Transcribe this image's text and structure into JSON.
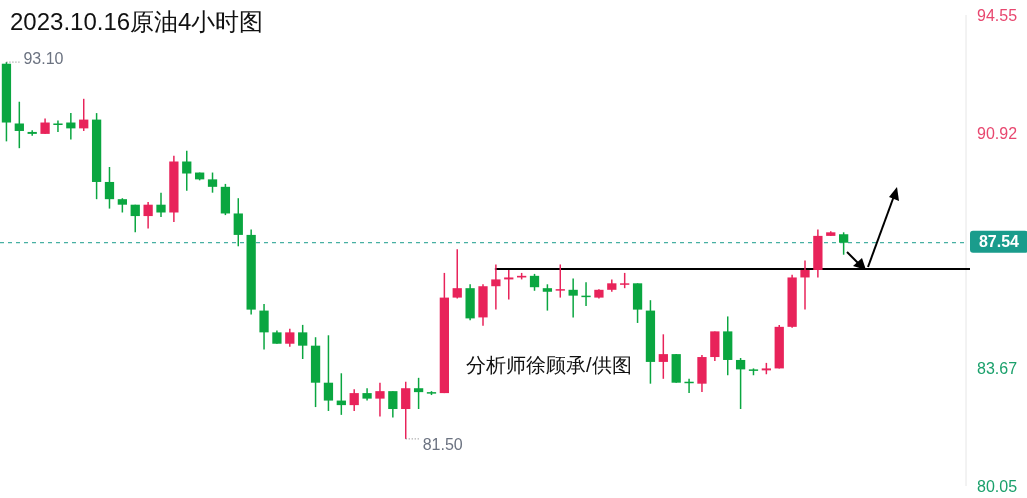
{
  "chart_data": {
    "type": "candlestick",
    "title": "2023.10.16原油4小时图",
    "categories": [
      null,
      null,
      null,
      null,
      null,
      null,
      null,
      null,
      null,
      null,
      null,
      null,
      null,
      null,
      null,
      null,
      null,
      null,
      null,
      null,
      null,
      null,
      null,
      null,
      null,
      null,
      null,
      null,
      null,
      null,
      null,
      null,
      null,
      null,
      null,
      null,
      null,
      null,
      null,
      null,
      null,
      null,
      null,
      null,
      null,
      null,
      null,
      null,
      null,
      null,
      null,
      null,
      null,
      null,
      null,
      null,
      null,
      null,
      null,
      null,
      null,
      null,
      null,
      null,
      null,
      null,
      null,
      null,
      null,
      null,
      null,
      null,
      null,
      null,
      null
    ],
    "ohlc": [
      [
        93.05,
        93.1,
        90.66,
        91.24
      ],
      [
        91.21,
        91.88,
        90.45,
        90.98
      ],
      [
        90.95,
        91.0,
        90.83,
        90.89
      ],
      [
        90.89,
        91.36,
        90.89,
        91.24
      ],
      [
        91.21,
        91.3,
        90.95,
        91.18
      ],
      [
        91.24,
        91.53,
        90.72,
        91.06
      ],
      [
        91.06,
        91.97,
        90.98,
        91.33
      ],
      [
        91.33,
        91.53,
        88.88,
        89.41
      ],
      [
        89.41,
        89.87,
        88.59,
        88.88
      ],
      [
        88.88,
        88.91,
        88.47,
        88.71
      ],
      [
        88.71,
        88.71,
        87.86,
        88.36
      ],
      [
        88.36,
        88.79,
        87.98,
        88.71
      ],
      [
        88.71,
        89.08,
        88.33,
        88.47
      ],
      [
        88.47,
        90.22,
        88.18,
        90.04
      ],
      [
        90.04,
        90.37,
        89.14,
        89.67
      ],
      [
        89.7,
        89.7,
        89.46,
        89.49
      ],
      [
        89.49,
        89.7,
        89.08,
        89.26
      ],
      [
        89.26,
        89.35,
        88.39,
        88.44
      ],
      [
        88.44,
        88.91,
        87.43,
        87.78
      ],
      [
        87.78,
        87.95,
        85.33,
        85.48
      ],
      [
        85.45,
        85.65,
        84.25,
        84.78
      ],
      [
        84.78,
        84.84,
        84.43,
        84.43
      ],
      [
        84.43,
        84.89,
        84.34,
        84.78
      ],
      [
        84.78,
        85.01,
        83.96,
        84.37
      ],
      [
        84.37,
        84.63,
        82.48,
        83.23
      ],
      [
        83.23,
        84.69,
        82.36,
        82.68
      ],
      [
        82.68,
        83.52,
        82.24,
        82.54
      ],
      [
        82.54,
        83.03,
        82.36,
        82.91
      ],
      [
        82.91,
        83.06,
        82.68,
        82.74
      ],
      [
        82.74,
        83.23,
        82.19,
        82.97
      ],
      [
        82.97,
        82.97,
        82.16,
        82.42
      ],
      [
        82.42,
        83.26,
        81.5,
        83.06
      ],
      [
        83.06,
        83.38,
        82.42,
        82.94
      ],
      [
        82.94,
        82.97,
        82.85,
        82.91
      ],
      [
        82.91,
        86.61,
        82.91,
        85.85
      ],
      [
        85.85,
        87.34,
        85.82,
        86.14
      ],
      [
        86.14,
        86.26,
        85.15,
        85.21
      ],
      [
        85.24,
        86.26,
        84.98,
        86.2
      ],
      [
        86.2,
        86.87,
        85.48,
        86.41
      ],
      [
        86.41,
        86.7,
        85.79,
        86.47
      ],
      [
        86.47,
        86.61,
        86.41,
        86.52
      ],
      [
        86.52,
        86.58,
        86.06,
        86.17
      ],
      [
        86.14,
        86.26,
        85.45,
        86.03
      ],
      [
        86.09,
        86.87,
        85.85,
        86.11
      ],
      [
        86.09,
        86.44,
        85.24,
        85.91
      ],
      [
        85.91,
        86.32,
        85.59,
        85.88
      ],
      [
        85.85,
        86.11,
        85.82,
        86.09
      ],
      [
        86.09,
        86.41,
        86.03,
        86.29
      ],
      [
        86.26,
        86.61,
        86.14,
        86.29
      ],
      [
        86.29,
        86.29,
        85.07,
        85.48
      ],
      [
        85.45,
        85.77,
        83.2,
        83.87
      ],
      [
        83.87,
        84.72,
        83.35,
        84.11
      ],
      [
        84.11,
        84.11,
        83.23,
        83.23
      ],
      [
        83.26,
        83.35,
        82.91,
        83.23
      ],
      [
        83.2,
        84.08,
        82.94,
        84.02
      ],
      [
        84.02,
        84.81,
        83.9,
        84.81
      ],
      [
        84.81,
        85.27,
        83.46,
        83.93
      ],
      [
        83.93,
        83.99,
        82.42,
        83.64
      ],
      [
        83.64,
        83.67,
        83.46,
        83.61
      ],
      [
        83.61,
        83.84,
        83.49,
        83.67
      ],
      [
        83.67,
        85.01,
        83.67,
        84.95
      ],
      [
        84.95,
        86.55,
        84.92,
        86.47
      ],
      [
        86.47,
        86.99,
        85.48,
        86.7
      ],
      [
        86.7,
        87.95,
        86.47,
        87.75
      ],
      [
        87.75,
        87.89,
        87.75,
        87.86
      ],
      [
        87.8,
        87.86,
        87.17,
        87.54
      ],
      null,
      null,
      null,
      null,
      null,
      null,
      null,
      null,
      null
    ],
    "ylim": [
      80.05,
      94.55
    ],
    "yticks": [
      94.55,
      90.92,
      83.67,
      80.05
    ],
    "ref_lines": [
      {
        "axis": "y",
        "value": 87.54,
        "label": "87.54",
        "color": "#1a9c8c",
        "line_style": "dashed"
      },
      {
        "axis": "y",
        "value": 86.73,
        "label": null,
        "color": "#000000",
        "line_style": "solid"
      }
    ],
    "annotations": [
      "93.10",
      "81.50",
      "分析师徐顾承/供图"
    ],
    "grid": false
  }
}
